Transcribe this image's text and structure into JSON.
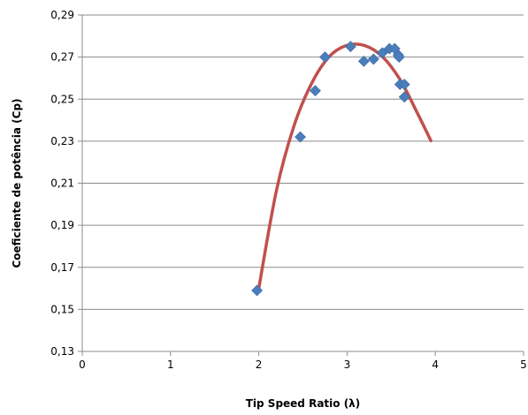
{
  "chart_data": {
    "type": "scatter",
    "xlabel": "Tip Speed Ratio (λ)",
    "ylabel": "Coeficiente de potência (Cp)",
    "xlim": [
      0,
      5
    ],
    "ylim": [
      0.13,
      0.29
    ],
    "x_ticks": [
      "0",
      "1",
      "2",
      "3",
      "4",
      "5"
    ],
    "y_ticks": [
      "0,13",
      "0,15",
      "0,17",
      "0,19",
      "0,21",
      "0,23",
      "0,25",
      "0,27",
      "0,29"
    ],
    "grid": "horizontal",
    "series": [
      {
        "marker": "diamond",
        "color": "#4a7ebb",
        "points": [
          {
            "x": 1.98,
            "y": 0.159
          },
          {
            "x": 2.47,
            "y": 0.232
          },
          {
            "x": 2.64,
            "y": 0.254
          },
          {
            "x": 2.75,
            "y": 0.27
          },
          {
            "x": 3.04,
            "y": 0.275
          },
          {
            "x": 3.19,
            "y": 0.268
          },
          {
            "x": 3.3,
            "y": 0.269
          },
          {
            "x": 3.4,
            "y": 0.272
          },
          {
            "x": 3.48,
            "y": 0.274
          },
          {
            "x": 3.54,
            "y": 0.274
          },
          {
            "x": 3.58,
            "y": 0.271
          },
          {
            "x": 3.59,
            "y": 0.27
          },
          {
            "x": 3.6,
            "y": 0.257
          },
          {
            "x": 3.65,
            "y": 0.257
          },
          {
            "x": 3.65,
            "y": 0.251
          }
        ]
      },
      {
        "type": "line",
        "style": "polynomial-trendline",
        "color": "#c0504d",
        "x": [
          2.0,
          2.2,
          2.4,
          2.6,
          2.8,
          3.0,
          3.2,
          3.4,
          3.6,
          3.8,
          3.95
        ],
        "y": [
          0.16,
          0.2065,
          0.2374,
          0.2576,
          0.2703,
          0.2756,
          0.2755,
          0.2702,
          0.2593,
          0.2431,
          0.2302
        ]
      }
    ]
  }
}
